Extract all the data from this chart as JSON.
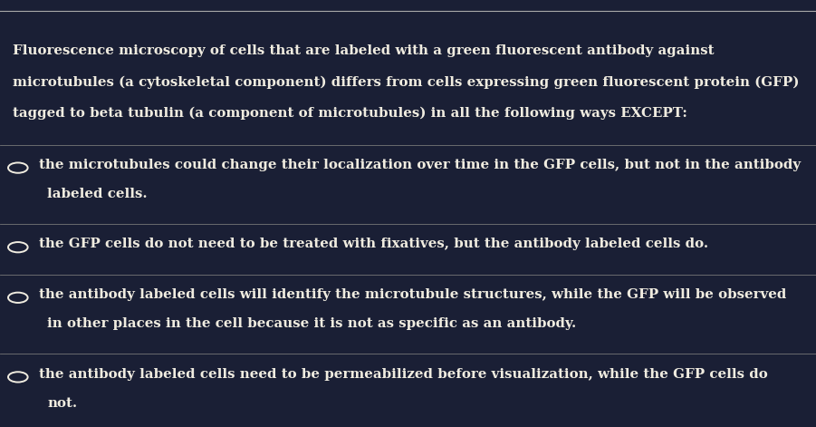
{
  "bg_color": "#1a1f35",
  "text_color": "#f0ece0",
  "line_color": "#777777",
  "top_line_color": "#aaaaaa",
  "question_text": [
    "Fluorescence microscopy of cells that are labeled with a green fluorescent antibody against",
    "microtubules (a cytoskeletal component) differs from cells expressing green fluorescent protein (GFP)",
    "tagged to beta tubulin (a component of microtubules) in all the following ways EXCEPT:"
  ],
  "options": [
    {
      "lines": [
        "the microtubules could change their localization over time in the GFP cells, but not in the antibody",
        "labeled cells."
      ]
    },
    {
      "lines": [
        "the GFP cells do not need to be treated with fixatives, but the antibody labeled cells do."
      ]
    },
    {
      "lines": [
        "the antibody labeled cells will identify the microtubule structures, while the GFP will be observed",
        "in other places in the cell because it is not as specific as an antibody."
      ]
    },
    {
      "lines": [
        "the antibody labeled cells need to be permeabilized before visualization, while the GFP cells do",
        "not."
      ]
    }
  ],
  "question_fontsize": 10.8,
  "option_fontsize": 10.8,
  "figsize": [
    9.01,
    4.71
  ],
  "dpi": 100
}
